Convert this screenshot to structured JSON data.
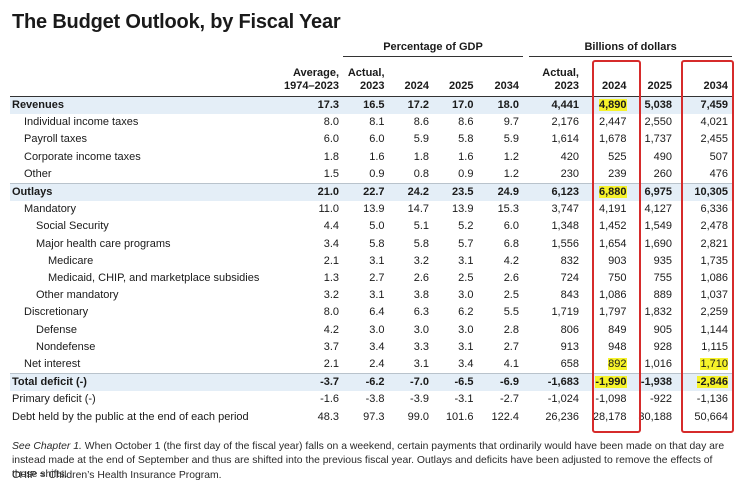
{
  "title": "The Budget Outlook, by Fiscal Year",
  "headers": {
    "group_gdp": "Percentage of GDP",
    "group_dollars": "Billions of dollars",
    "columns": [
      "Average,\n1974–2023",
      "Actual,\n2023",
      "2024",
      "2025",
      "2034",
      "Actual,\n2023",
      "2024",
      "2025",
      "2034"
    ]
  },
  "rows": [
    {
      "label": "Revenues",
      "values": [
        "17.3",
        "16.5",
        "17.2",
        "17.0",
        "18.0",
        "4,441",
        "4,890",
        "5,038",
        "7,459"
      ]
    },
    {
      "label": "Individual income taxes",
      "values": [
        "8.0",
        "8.1",
        "8.6",
        "8.6",
        "9.7",
        "2,176",
        "2,447",
        "2,550",
        "4,021"
      ]
    },
    {
      "label": "Payroll taxes",
      "values": [
        "6.0",
        "6.0",
        "5.9",
        "5.8",
        "5.9",
        "1,614",
        "1,678",
        "1,737",
        "2,455"
      ]
    },
    {
      "label": "Corporate income taxes",
      "values": [
        "1.8",
        "1.6",
        "1.8",
        "1.6",
        "1.2",
        "420",
        "525",
        "490",
        "507"
      ]
    },
    {
      "label": "Other",
      "values": [
        "1.5",
        "0.9",
        "0.8",
        "0.9",
        "1.2",
        "230",
        "239",
        "260",
        "476"
      ]
    },
    {
      "label": "Outlays",
      "values": [
        "21.0",
        "22.7",
        "24.2",
        "23.5",
        "24.9",
        "6,123",
        "6,880",
        "6,975",
        "10,305"
      ]
    },
    {
      "label": "Mandatory",
      "values": [
        "11.0",
        "13.9",
        "14.7",
        "13.9",
        "15.3",
        "3,747",
        "4,191",
        "4,127",
        "6,336"
      ]
    },
    {
      "label": "Social Security",
      "values": [
        "4.4",
        "5.0",
        "5.1",
        "5.2",
        "6.0",
        "1,348",
        "1,452",
        "1,549",
        "2,478"
      ]
    },
    {
      "label": "Major health care programs",
      "values": [
        "3.4",
        "5.8",
        "5.8",
        "5.7",
        "6.8",
        "1,556",
        "1,654",
        "1,690",
        "2,821"
      ]
    },
    {
      "label": "Medicare",
      "values": [
        "2.1",
        "3.1",
        "3.2",
        "3.1",
        "4.2",
        "832",
        "903",
        "935",
        "1,735"
      ]
    },
    {
      "label": "Medicaid, CHIP, and marketplace subsidies",
      "values": [
        "1.3",
        "2.7",
        "2.6",
        "2.5",
        "2.6",
        "724",
        "750",
        "755",
        "1,086"
      ]
    },
    {
      "label": "Other mandatory",
      "values": [
        "3.2",
        "3.1",
        "3.8",
        "3.0",
        "2.5",
        "843",
        "1,086",
        "889",
        "1,037"
      ]
    },
    {
      "label": "Discretionary",
      "values": [
        "8.0",
        "6.4",
        "6.3",
        "6.2",
        "5.5",
        "1,719",
        "1,797",
        "1,832",
        "2,259"
      ]
    },
    {
      "label": "Defense",
      "values": [
        "4.2",
        "3.0",
        "3.0",
        "3.0",
        "2.8",
        "806",
        "849",
        "905",
        "1,144"
      ]
    },
    {
      "label": "Nondefense",
      "values": [
        "3.7",
        "3.4",
        "3.3",
        "3.1",
        "2.7",
        "913",
        "948",
        "928",
        "1,115"
      ]
    },
    {
      "label": "Net interest",
      "values": [
        "2.1",
        "2.4",
        "3.1",
        "3.4",
        "4.1",
        "658",
        "892",
        "1,016",
        "1,710"
      ]
    },
    {
      "label": "Total deficit (-)",
      "values": [
        "-3.7",
        "-6.2",
        "-7.0",
        "-6.5",
        "-6.9",
        "-1,683",
        "-1,990",
        "-1,938",
        "-2,846"
      ]
    },
    {
      "label": "Primary deficit (-)",
      "values": [
        "-1.6",
        "-3.8",
        "-3.9",
        "-3.1",
        "-2.7",
        "-1,024",
        "-1,098",
        "-922",
        "-1,136"
      ]
    },
    {
      "label": "Debt held by the public at the end of each period",
      "values": [
        "48.3",
        "97.3",
        "99.0",
        "101.6",
        "122.4",
        "26,236",
        "28,178",
        "30,188",
        "50,664"
      ]
    }
  ],
  "notes": {
    "see_chapter": "See Chapter 1.",
    "note_body": " When October 1 (the first day of the fiscal year) falls on a weekend, certain payments that ordinarily would have been made on that day are instead made at the end of September and thus are shifted into the previous fiscal year. Outlays and deficits have been adjusted to remove the effects of those shifts.",
    "chip": "CHIP = Children’s Health Insurance Program."
  },
  "colors": {
    "shade": "#e4eef7",
    "highlight": "#f6f32a",
    "box": "#d62b2b"
  }
}
